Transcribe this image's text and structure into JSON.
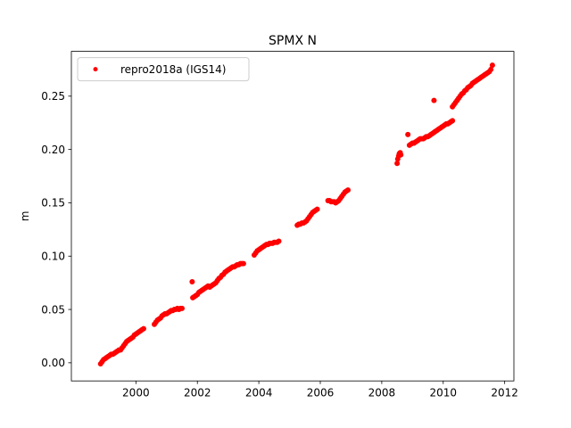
{
  "chart_data": {
    "type": "scatter",
    "title": "SPMX N",
    "xlabel": "",
    "ylabel": "m",
    "xlim": [
      1997.9,
      2012.3
    ],
    "ylim": [
      -0.017,
      0.292
    ],
    "xticks": [
      2000,
      2002,
      2004,
      2006,
      2008,
      2010,
      2012
    ],
    "xtick_labels": [
      "2000",
      "2002",
      "2004",
      "2006",
      "2008",
      "2010",
      "2012"
    ],
    "yticks": [
      0.0,
      0.05,
      0.1,
      0.15,
      0.2,
      0.25
    ],
    "ytick_labels": [
      "0.00",
      "0.05",
      "0.10",
      "0.15",
      "0.20",
      "0.25"
    ],
    "grid": false,
    "legend_position": "top-left",
    "series": [
      {
        "name": "repro2018a (IGS14)",
        "color": "#ff0000",
        "marker": "circle",
        "x": [
          1998.85,
          1998.9,
          1998.95,
          1999.0,
          1999.05,
          1999.1,
          1999.15,
          1999.2,
          1999.25,
          1999.3,
          1999.35,
          1999.4,
          1999.45,
          1999.5,
          1999.55,
          1999.6,
          1999.65,
          1999.7,
          1999.75,
          1999.8,
          1999.85,
          1999.9,
          1999.95,
          2000.0,
          2000.05,
          2000.1,
          2000.15,
          2000.2,
          2000.25,
          2000.6,
          2000.65,
          2000.7,
          2000.75,
          2000.8,
          2000.85,
          2000.9,
          2000.95,
          2001.0,
          2001.05,
          2001.1,
          2001.15,
          2001.2,
          2001.25,
          2001.3,
          2001.35,
          2001.4,
          2001.45,
          2001.5,
          2001.83,
          2001.85,
          2001.9,
          2001.95,
          2002.0,
          2002.05,
          2002.1,
          2002.15,
          2002.2,
          2002.25,
          2002.3,
          2002.35,
          2002.4,
          2002.45,
          2002.5,
          2002.55,
          2002.6,
          2002.65,
          2002.7,
          2002.75,
          2002.8,
          2002.85,
          2002.9,
          2002.95,
          2003.0,
          2003.05,
          2003.1,
          2003.15,
          2003.2,
          2003.25,
          2003.3,
          2003.35,
          2003.4,
          2003.45,
          2003.5,
          2003.85,
          2003.9,
          2003.95,
          2004.0,
          2004.05,
          2004.1,
          2004.15,
          2004.2,
          2004.25,
          2004.3,
          2004.35,
          2004.4,
          2004.45,
          2004.5,
          2004.55,
          2004.6,
          2004.65,
          2005.25,
          2005.3,
          2005.35,
          2005.4,
          2005.45,
          2005.5,
          2005.55,
          2005.6,
          2005.65,
          2005.7,
          2005.75,
          2005.8,
          2005.85,
          2005.9,
          2006.25,
          2006.3,
          2006.35,
          2006.4,
          2006.45,
          2006.5,
          2006.55,
          2006.6,
          2006.65,
          2006.7,
          2006.75,
          2006.8,
          2006.85,
          2006.9,
          2008.5,
          2008.52,
          2008.55,
          2008.57,
          2008.6,
          2008.62,
          2008.85,
          2008.9,
          2008.95,
          2009.0,
          2009.05,
          2009.1,
          2009.15,
          2009.2,
          2009.25,
          2009.3,
          2009.35,
          2009.4,
          2009.45,
          2009.5,
          2009.55,
          2009.6,
          2009.65,
          2009.7,
          2009.75,
          2009.8,
          2009.85,
          2009.9,
          2009.95,
          2010.0,
          2010.05,
          2010.1,
          2010.15,
          2010.2,
          2010.25,
          2010.3,
          2009.7,
          2010.3,
          2010.35,
          2010.4,
          2010.45,
          2010.5,
          2010.55,
          2010.6,
          2010.65,
          2010.7,
          2010.75,
          2010.8,
          2010.85,
          2010.9,
          2010.95,
          2011.0,
          2011.05,
          2011.1,
          2011.15,
          2011.2,
          2011.25,
          2011.3,
          2011.35,
          2011.4,
          2011.45,
          2011.5,
          2011.55,
          2011.6
        ],
        "y": [
          -0.001,
          0.001,
          0.003,
          0.004,
          0.005,
          0.006,
          0.007,
          0.008,
          0.008,
          0.009,
          0.01,
          0.011,
          0.012,
          0.012,
          0.014,
          0.016,
          0.018,
          0.02,
          0.021,
          0.022,
          0.023,
          0.024,
          0.026,
          0.027,
          0.028,
          0.029,
          0.03,
          0.031,
          0.032,
          0.036,
          0.038,
          0.04,
          0.041,
          0.042,
          0.044,
          0.045,
          0.046,
          0.046,
          0.047,
          0.048,
          0.049,
          0.049,
          0.05,
          0.05,
          0.051,
          0.05,
          0.051,
          0.051,
          0.076,
          0.061,
          0.062,
          0.063,
          0.064,
          0.066,
          0.067,
          0.068,
          0.069,
          0.07,
          0.071,
          0.072,
          0.071,
          0.072,
          0.073,
          0.074,
          0.075,
          0.077,
          0.079,
          0.08,
          0.082,
          0.083,
          0.085,
          0.086,
          0.087,
          0.088,
          0.089,
          0.09,
          0.09,
          0.091,
          0.092,
          0.092,
          0.093,
          0.093,
          0.093,
          0.101,
          0.103,
          0.105,
          0.106,
          0.107,
          0.108,
          0.109,
          0.11,
          0.111,
          0.111,
          0.112,
          0.112,
          0.112,
          0.113,
          0.113,
          0.113,
          0.114,
          0.129,
          0.13,
          0.13,
          0.131,
          0.131,
          0.132,
          0.133,
          0.135,
          0.137,
          0.139,
          0.141,
          0.142,
          0.143,
          0.144,
          0.152,
          0.152,
          0.151,
          0.151,
          0.151,
          0.15,
          0.151,
          0.152,
          0.154,
          0.156,
          0.158,
          0.16,
          0.161,
          0.162,
          0.187,
          0.191,
          0.194,
          0.196,
          0.197,
          0.195,
          0.214,
          0.204,
          0.205,
          0.206,
          0.206,
          0.207,
          0.208,
          0.209,
          0.21,
          0.21,
          0.21,
          0.211,
          0.212,
          0.212,
          0.213,
          0.214,
          0.215,
          0.216,
          0.217,
          0.218,
          0.219,
          0.22,
          0.221,
          0.222,
          0.223,
          0.224,
          0.224,
          0.225,
          0.226,
          0.227,
          0.246,
          0.24,
          0.242,
          0.244,
          0.246,
          0.248,
          0.25,
          0.252,
          0.253,
          0.255,
          0.256,
          0.258,
          0.259,
          0.26,
          0.262,
          0.263,
          0.264,
          0.265,
          0.266,
          0.267,
          0.268,
          0.269,
          0.27,
          0.271,
          0.272,
          0.273,
          0.275,
          0.279
        ]
      }
    ]
  }
}
